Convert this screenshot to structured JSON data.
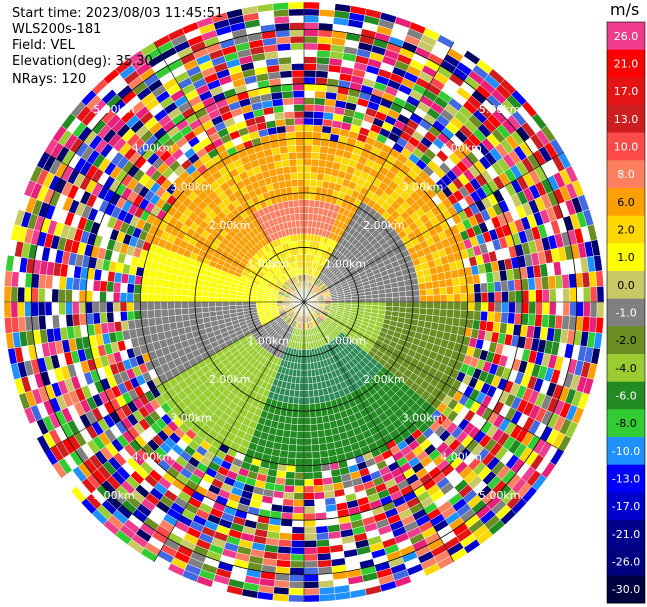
{
  "header": {
    "start_time": "Start time: 2023/08/03 11:45:51",
    "instrument": "WLS200s-181",
    "field": "Field: VEL",
    "elevation": "Elevation(deg): 35.30",
    "nrays": "NRays: 120"
  },
  "colorbar": {
    "unit": "m/s",
    "ticks": [
      "26.0",
      "21.0",
      "17.0",
      "13.0",
      "10.0",
      "8.0",
      "6.0",
      "2.0",
      "1.0",
      "0.0",
      "-1.0",
      "-2.0",
      "-4.0",
      "-6.0",
      "-8.0",
      "-10.0",
      "-13.0",
      "-17.0",
      "-21.0",
      "-26.0",
      "-30.0"
    ],
    "colors": [
      "#e8207a",
      "#f03c8c",
      "#ff0000",
      "#e51414",
      "#cc1e1e",
      "#ff4a4a",
      "#ff8060",
      "#ffa000",
      "#ffd700",
      "#ffff00",
      "#c8c864",
      "#808080",
      "#6b8e23",
      "#9acd32",
      "#32cd32",
      "#228b22",
      "#1e90ff",
      "#4169e1",
      "#0000ff",
      "#0000cd",
      "#00008b",
      "#000060"
    ]
  },
  "range_labels": [
    "1.00km",
    "2.00km",
    "3.00km",
    "4.00km",
    "5.00km"
  ],
  "chart_data": {
    "type": "heatmap",
    "title": "",
    "projection": "polar PPI",
    "field": "VEL",
    "unit": "m/s",
    "range_rings_km": [
      1,
      2,
      3,
      4,
      5
    ],
    "max_range_km": 5.5,
    "nrays": 120,
    "elevation_deg": 35.3,
    "value_range": [
      -30,
      26
    ],
    "description_of_field": {
      "0_to_1km": "mixed noise near center",
      "north_1_to_3km": [
        2,
        8
      ],
      "south_1_to_3km": [
        -8,
        -1
      ],
      "beyond_3km": "random noise all colors"
    }
  }
}
